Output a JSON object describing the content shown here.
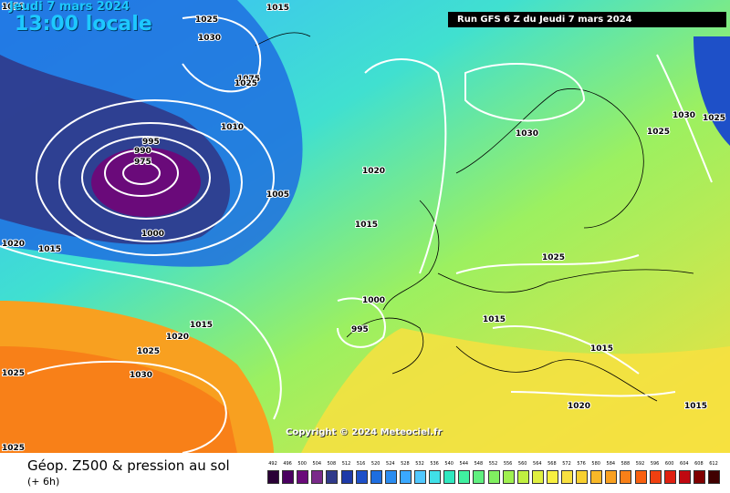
{
  "header": {
    "date": "Jeudi 7 mars 2024",
    "time": "13:00 locale",
    "run": "Run GFS 6 Z du Jeudi 7 mars 2024"
  },
  "map": {
    "copyright": "Copyright © 2024 Meteociel.fr",
    "pressure_labels": [
      "1010",
      "1015",
      "1025",
      "1030",
      "1075",
      "1025",
      "1010",
      "995",
      "990",
      "975",
      "1020",
      "1005",
      "1000",
      "1015",
      "1030",
      "1025",
      "1030",
      "1025",
      "1020",
      "1015",
      "1025",
      "1015",
      "1000",
      "995",
      "1015",
      "1020",
      "1025",
      "1030",
      "1025",
      "1015",
      "1020",
      "1015",
      "1025"
    ]
  },
  "legend": {
    "title": "Géop. Z500 & pression au sol",
    "subtitle": "(+ 6h)",
    "scale_values": [
      "492",
      "496",
      "500",
      "504",
      "508",
      "512",
      "516",
      "520",
      "524",
      "528",
      "532",
      "536",
      "540",
      "544",
      "548",
      "552",
      "556",
      "560",
      "564",
      "568",
      "572",
      "576",
      "580",
      "584",
      "588",
      "592",
      "596",
      "600",
      "604",
      "608",
      "612"
    ],
    "scale_colors": [
      "#2a0036",
      "#4a0060",
      "#6a0a7a",
      "#7a2a8a",
      "#303a8a",
      "#1e3aa8",
      "#1e50c8",
      "#1e6ee0",
      "#2a8cf0",
      "#3aa8ff",
      "#50c8ff",
      "#40e0e8",
      "#30e8c0",
      "#40f0a0",
      "#60f080",
      "#80f060",
      "#a0f050",
      "#c0f040",
      "#e0f040",
      "#f8f040",
      "#f8e040",
      "#f8d030",
      "#f8b828",
      "#f8a020",
      "#f88018",
      "#f86010",
      "#f04010",
      "#e02010",
      "#c00810",
      "#800000",
      "#400000"
    ]
  }
}
